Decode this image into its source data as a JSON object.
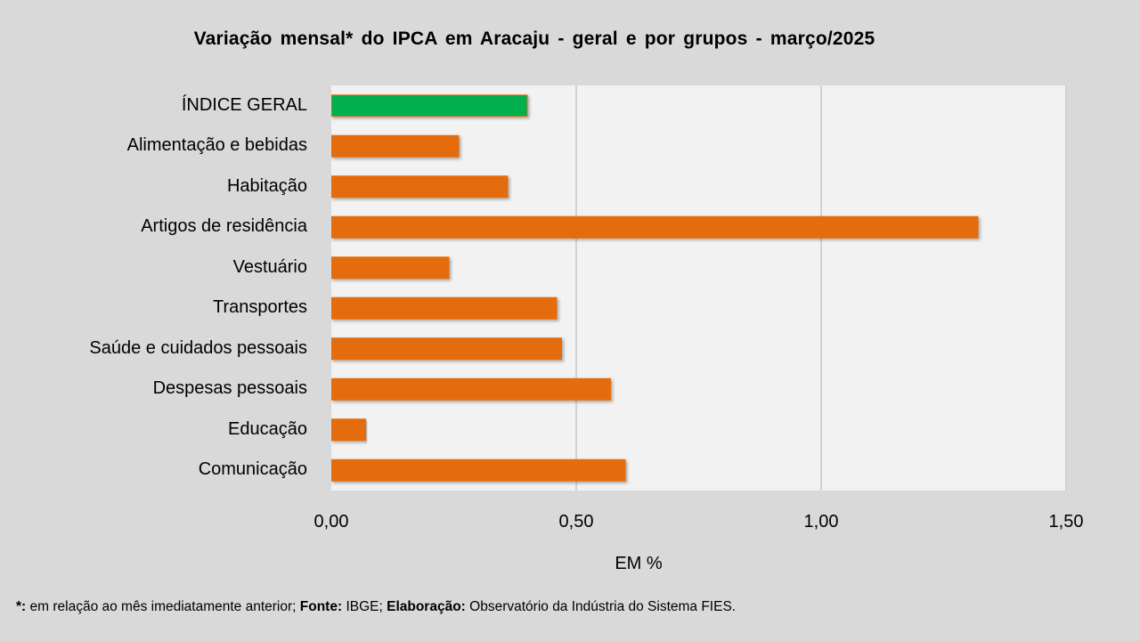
{
  "chart_data": {
    "type": "bar",
    "orientation": "horizontal",
    "title": "Variação  mensal*  do IPCA em Aracaju  - geral e por grupos  - março/2025",
    "xlabel": "EM %",
    "ylabel": "",
    "categories": [
      "ÍNDICE GERAL",
      "Alimentação e bebidas",
      "Habitação",
      "Artigos de residência",
      "Vestuário",
      "Transportes",
      "Saúde e cuidados pessoais",
      "Despesas pessoais",
      "Educação",
      "Comunicação"
    ],
    "values": [
      0.4,
      0.26,
      0.36,
      1.32,
      0.24,
      0.46,
      0.47,
      0.57,
      0.07,
      0.6
    ],
    "colors": [
      "#00b050",
      "#e46c0a",
      "#e46c0a",
      "#e46c0a",
      "#e46c0a",
      "#e46c0a",
      "#e46c0a",
      "#e46c0a",
      "#e46c0a",
      "#e46c0a"
    ],
    "xlim": [
      0,
      1.5
    ],
    "x_ticks": [
      0,
      0.5,
      1.0,
      1.5
    ],
    "x_tick_labels": [
      "0,00",
      "0,50",
      "1,00",
      "1,50"
    ],
    "grid": "vertical",
    "legend": "none"
  },
  "footnote": {
    "star_label": "*:",
    "star_text": " em relação ao mês imediatamente  anterior; ",
    "source_label": "Fonte:",
    "source_text": " IBGE; ",
    "credit_label": "Elaboração:",
    "credit_text": " Observatório da Indústria do Sistema FIES."
  }
}
